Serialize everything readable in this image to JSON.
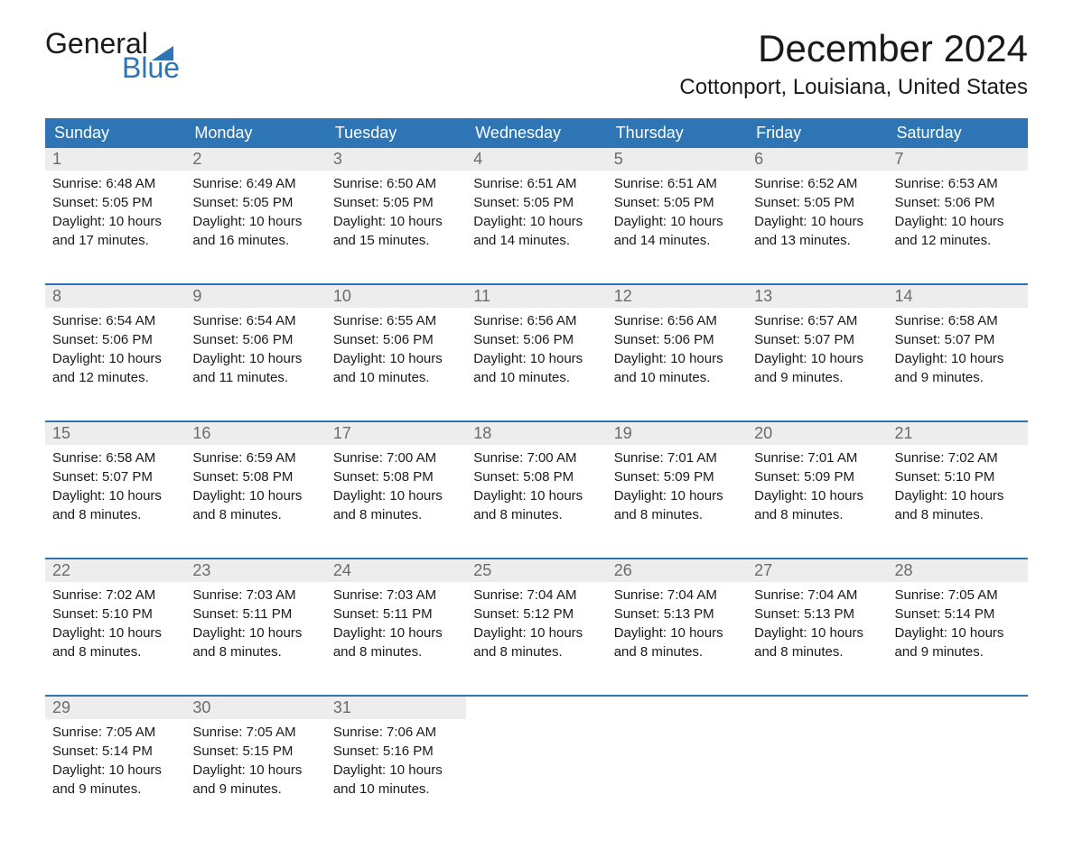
{
  "logo": {
    "text_top": "General",
    "text_bottom": "Blue",
    "icon_color": "#2e75b6",
    "top_color": "#1a1a1a",
    "bottom_color": "#2e75b6"
  },
  "title": "December 2024",
  "location": "Cottonport, Louisiana, United States",
  "colors": {
    "header_bg": "#2e75b6",
    "header_text": "#ffffff",
    "day_number_bg": "#ededed",
    "day_number_text": "#6b6b6b",
    "border_top": "#2e75b6",
    "body_text": "#1a1a1a",
    "background": "#ffffff"
  },
  "day_headers": [
    "Sunday",
    "Monday",
    "Tuesday",
    "Wednesday",
    "Thursday",
    "Friday",
    "Saturday"
  ],
  "weeks": [
    [
      {
        "day": "1",
        "sunrise": "Sunrise: 6:48 AM",
        "sunset": "Sunset: 5:05 PM",
        "daylight1": "Daylight: 10 hours",
        "daylight2": "and 17 minutes."
      },
      {
        "day": "2",
        "sunrise": "Sunrise: 6:49 AM",
        "sunset": "Sunset: 5:05 PM",
        "daylight1": "Daylight: 10 hours",
        "daylight2": "and 16 minutes."
      },
      {
        "day": "3",
        "sunrise": "Sunrise: 6:50 AM",
        "sunset": "Sunset: 5:05 PM",
        "daylight1": "Daylight: 10 hours",
        "daylight2": "and 15 minutes."
      },
      {
        "day": "4",
        "sunrise": "Sunrise: 6:51 AM",
        "sunset": "Sunset: 5:05 PM",
        "daylight1": "Daylight: 10 hours",
        "daylight2": "and 14 minutes."
      },
      {
        "day": "5",
        "sunrise": "Sunrise: 6:51 AM",
        "sunset": "Sunset: 5:05 PM",
        "daylight1": "Daylight: 10 hours",
        "daylight2": "and 14 minutes."
      },
      {
        "day": "6",
        "sunrise": "Sunrise: 6:52 AM",
        "sunset": "Sunset: 5:05 PM",
        "daylight1": "Daylight: 10 hours",
        "daylight2": "and 13 minutes."
      },
      {
        "day": "7",
        "sunrise": "Sunrise: 6:53 AM",
        "sunset": "Sunset: 5:06 PM",
        "daylight1": "Daylight: 10 hours",
        "daylight2": "and 12 minutes."
      }
    ],
    [
      {
        "day": "8",
        "sunrise": "Sunrise: 6:54 AM",
        "sunset": "Sunset: 5:06 PM",
        "daylight1": "Daylight: 10 hours",
        "daylight2": "and 12 minutes."
      },
      {
        "day": "9",
        "sunrise": "Sunrise: 6:54 AM",
        "sunset": "Sunset: 5:06 PM",
        "daylight1": "Daylight: 10 hours",
        "daylight2": "and 11 minutes."
      },
      {
        "day": "10",
        "sunrise": "Sunrise: 6:55 AM",
        "sunset": "Sunset: 5:06 PM",
        "daylight1": "Daylight: 10 hours",
        "daylight2": "and 10 minutes."
      },
      {
        "day": "11",
        "sunrise": "Sunrise: 6:56 AM",
        "sunset": "Sunset: 5:06 PM",
        "daylight1": "Daylight: 10 hours",
        "daylight2": "and 10 minutes."
      },
      {
        "day": "12",
        "sunrise": "Sunrise: 6:56 AM",
        "sunset": "Sunset: 5:06 PM",
        "daylight1": "Daylight: 10 hours",
        "daylight2": "and 10 minutes."
      },
      {
        "day": "13",
        "sunrise": "Sunrise: 6:57 AM",
        "sunset": "Sunset: 5:07 PM",
        "daylight1": "Daylight: 10 hours",
        "daylight2": "and 9 minutes."
      },
      {
        "day": "14",
        "sunrise": "Sunrise: 6:58 AM",
        "sunset": "Sunset: 5:07 PM",
        "daylight1": "Daylight: 10 hours",
        "daylight2": "and 9 minutes."
      }
    ],
    [
      {
        "day": "15",
        "sunrise": "Sunrise: 6:58 AM",
        "sunset": "Sunset: 5:07 PM",
        "daylight1": "Daylight: 10 hours",
        "daylight2": "and 8 minutes."
      },
      {
        "day": "16",
        "sunrise": "Sunrise: 6:59 AM",
        "sunset": "Sunset: 5:08 PM",
        "daylight1": "Daylight: 10 hours",
        "daylight2": "and 8 minutes."
      },
      {
        "day": "17",
        "sunrise": "Sunrise: 7:00 AM",
        "sunset": "Sunset: 5:08 PM",
        "daylight1": "Daylight: 10 hours",
        "daylight2": "and 8 minutes."
      },
      {
        "day": "18",
        "sunrise": "Sunrise: 7:00 AM",
        "sunset": "Sunset: 5:08 PM",
        "daylight1": "Daylight: 10 hours",
        "daylight2": "and 8 minutes."
      },
      {
        "day": "19",
        "sunrise": "Sunrise: 7:01 AM",
        "sunset": "Sunset: 5:09 PM",
        "daylight1": "Daylight: 10 hours",
        "daylight2": "and 8 minutes."
      },
      {
        "day": "20",
        "sunrise": "Sunrise: 7:01 AM",
        "sunset": "Sunset: 5:09 PM",
        "daylight1": "Daylight: 10 hours",
        "daylight2": "and 8 minutes."
      },
      {
        "day": "21",
        "sunrise": "Sunrise: 7:02 AM",
        "sunset": "Sunset: 5:10 PM",
        "daylight1": "Daylight: 10 hours",
        "daylight2": "and 8 minutes."
      }
    ],
    [
      {
        "day": "22",
        "sunrise": "Sunrise: 7:02 AM",
        "sunset": "Sunset: 5:10 PM",
        "daylight1": "Daylight: 10 hours",
        "daylight2": "and 8 minutes."
      },
      {
        "day": "23",
        "sunrise": "Sunrise: 7:03 AM",
        "sunset": "Sunset: 5:11 PM",
        "daylight1": "Daylight: 10 hours",
        "daylight2": "and 8 minutes."
      },
      {
        "day": "24",
        "sunrise": "Sunrise: 7:03 AM",
        "sunset": "Sunset: 5:11 PM",
        "daylight1": "Daylight: 10 hours",
        "daylight2": "and 8 minutes."
      },
      {
        "day": "25",
        "sunrise": "Sunrise: 7:04 AM",
        "sunset": "Sunset: 5:12 PM",
        "daylight1": "Daylight: 10 hours",
        "daylight2": "and 8 minutes."
      },
      {
        "day": "26",
        "sunrise": "Sunrise: 7:04 AM",
        "sunset": "Sunset: 5:13 PM",
        "daylight1": "Daylight: 10 hours",
        "daylight2": "and 8 minutes."
      },
      {
        "day": "27",
        "sunrise": "Sunrise: 7:04 AM",
        "sunset": "Sunset: 5:13 PM",
        "daylight1": "Daylight: 10 hours",
        "daylight2": "and 8 minutes."
      },
      {
        "day": "28",
        "sunrise": "Sunrise: 7:05 AM",
        "sunset": "Sunset: 5:14 PM",
        "daylight1": "Daylight: 10 hours",
        "daylight2": "and 9 minutes."
      }
    ],
    [
      {
        "day": "29",
        "sunrise": "Sunrise: 7:05 AM",
        "sunset": "Sunset: 5:14 PM",
        "daylight1": "Daylight: 10 hours",
        "daylight2": "and 9 minutes."
      },
      {
        "day": "30",
        "sunrise": "Sunrise: 7:05 AM",
        "sunset": "Sunset: 5:15 PM",
        "daylight1": "Daylight: 10 hours",
        "daylight2": "and 9 minutes."
      },
      {
        "day": "31",
        "sunrise": "Sunrise: 7:06 AM",
        "sunset": "Sunset: 5:16 PM",
        "daylight1": "Daylight: 10 hours",
        "daylight2": "and 10 minutes."
      },
      null,
      null,
      null,
      null
    ]
  ]
}
